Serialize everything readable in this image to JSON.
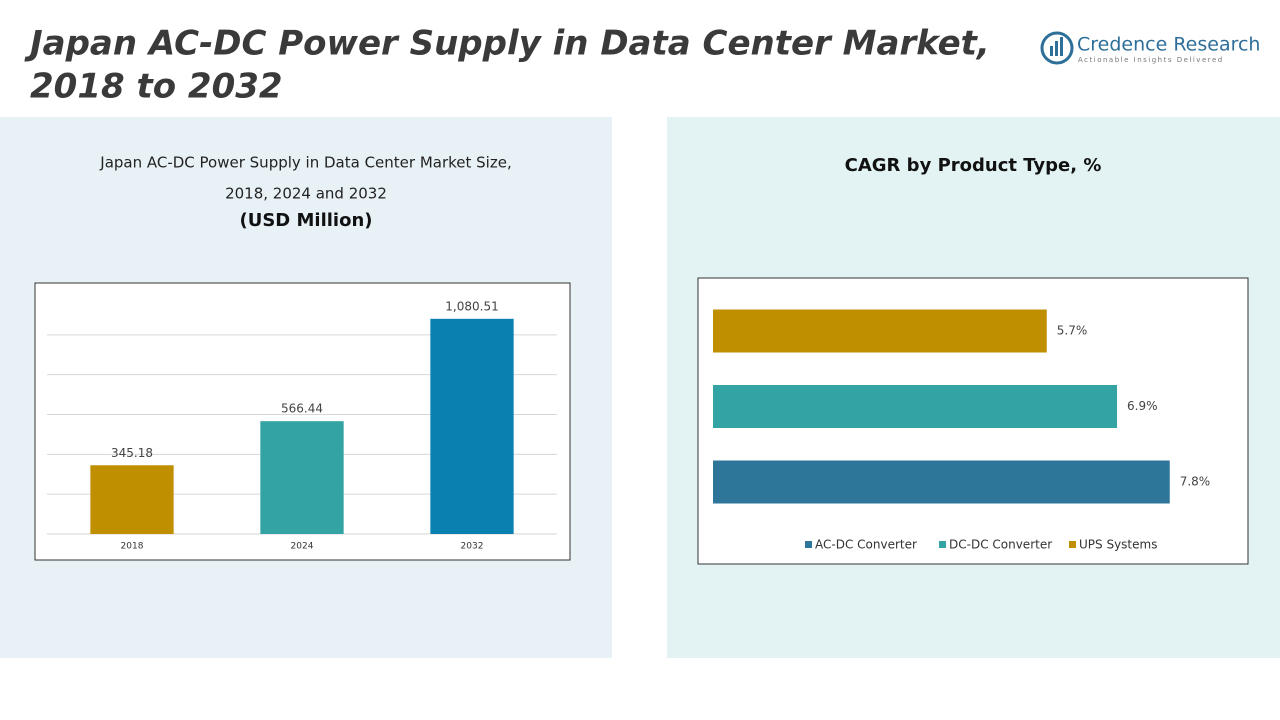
{
  "header": {
    "title": [
      "Japan AC-DC Power Supply in Data Center Market,",
      "2018 to 2032"
    ],
    "logo": {
      "name": "Credence Research",
      "tagline": "Actionable Insights Delivered"
    }
  },
  "chart_data": [
    {
      "type": "bar",
      "title": [
        "Japan AC-DC Power Supply in Data Center Market Size,",
        "2018, 2024 and 2032"
      ],
      "subtitle": "(USD Million)",
      "categories": [
        "2018",
        "2024",
        "2032"
      ],
      "values": [
        345.18,
        566.44,
        1080.51
      ],
      "value_labels": [
        "345.18",
        "566.44",
        "1,080.51"
      ],
      "colors": [
        "#bf8f00",
        "#33a3a3",
        "#0a80b0"
      ],
      "ylim": [
        0,
        1200
      ],
      "yticks": [
        0,
        200,
        400,
        600,
        800,
        1000
      ],
      "grid": true
    },
    {
      "type": "barh",
      "title": "CAGR by Product Type, %",
      "series": [
        {
          "name": "AC-DC Converter",
          "color": "#2e7699",
          "values": [
            7.8
          ],
          "value_labels": [
            "7.8%"
          ]
        },
        {
          "name": "DC-DC Converter",
          "color": "#33a3a3",
          "values": [
            6.9
          ],
          "value_labels": [
            "6.9%"
          ]
        },
        {
          "name": "UPS Systems",
          "color": "#bf8f00",
          "values": [
            5.7
          ],
          "value_labels": [
            "5.7%"
          ]
        }
      ],
      "xlim": [
        0,
        9
      ],
      "legend": "bottom"
    }
  ]
}
